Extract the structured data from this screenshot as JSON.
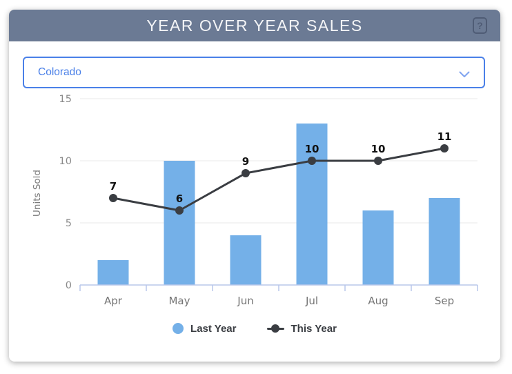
{
  "header": {
    "title": "YEAR OVER YEAR SALES",
    "help_label": "?"
  },
  "region_select": {
    "value": "Colorado"
  },
  "chart_data": {
    "type": "combo-bar-line",
    "categories": [
      "Apr",
      "May",
      "Jun",
      "Jul",
      "Aug",
      "Sep"
    ],
    "series": [
      {
        "name": "Last Year",
        "type": "bar",
        "values": [
          2,
          10,
          4,
          13,
          6,
          7
        ],
        "color": "#74b0e8",
        "data_labels": false
      },
      {
        "name": "This Year",
        "type": "line",
        "values": [
          7,
          6,
          9,
          10,
          10,
          11
        ],
        "color": "#3a3d42",
        "data_labels": true
      }
    ],
    "ylabel": "Units Sold",
    "xlabel": "",
    "yticks": [
      0,
      5,
      10,
      15
    ],
    "ylim": [
      0,
      15
    ],
    "grid": "horizontal",
    "legend_position": "bottom"
  },
  "colors": {
    "header_bg": "#6b7a94",
    "header_text": "#f4f5f7",
    "accent_blue": "#4a80e8",
    "bar_fill": "#74b0e8",
    "line_stroke": "#3a3d42",
    "gridline": "#e9e9e9",
    "axis_line": "#b9c7ea",
    "tick_label": "#8a8a8a",
    "category_label": "#757575",
    "data_label": "#111111"
  }
}
